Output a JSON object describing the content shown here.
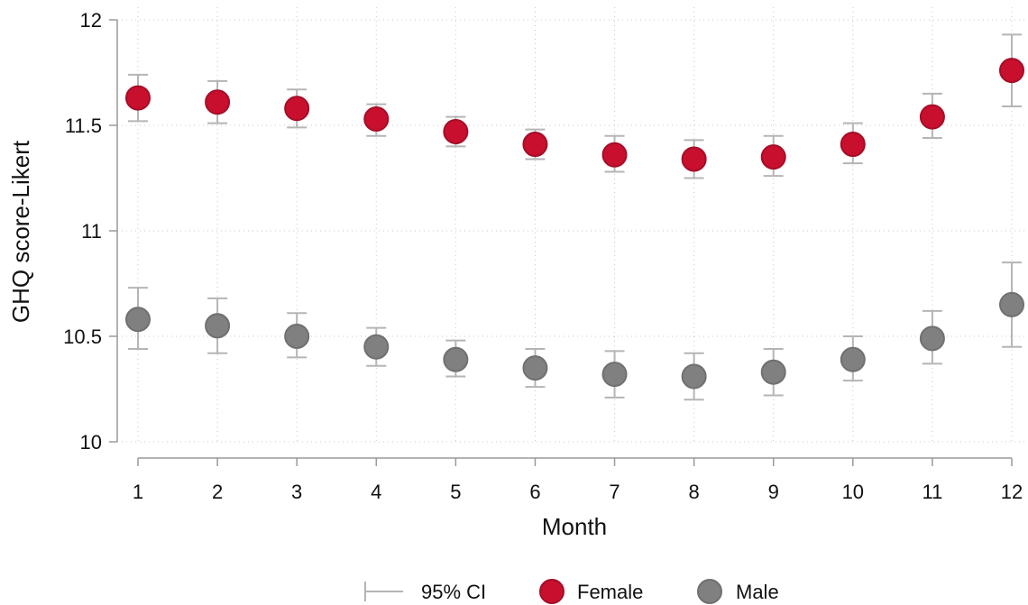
{
  "chart_data": {
    "type": "scatter",
    "title": "",
    "xlabel": "Month",
    "ylabel": "GHQ score-Likert",
    "x": [
      1,
      2,
      3,
      4,
      5,
      6,
      7,
      8,
      9,
      10,
      11,
      12
    ],
    "xticks": [
      "1",
      "2",
      "3",
      "4",
      "5",
      "6",
      "7",
      "8",
      "9",
      "10",
      "11",
      "12"
    ],
    "yticks": [
      10,
      10.5,
      11,
      11.5,
      12
    ],
    "ytick_labels": [
      "10",
      "10.5",
      "11",
      "11.5",
      "12"
    ],
    "xlim": [
      1,
      12
    ],
    "ylim": [
      10,
      12
    ],
    "grid": true,
    "legend": {
      "placement": "bottom",
      "ci_label": "95% CI"
    },
    "series": [
      {
        "name": "Female",
        "color": "#c8102e",
        "values": [
          11.63,
          11.61,
          11.58,
          11.53,
          11.47,
          11.41,
          11.36,
          11.34,
          11.35,
          11.41,
          11.54,
          11.76
        ],
        "ci_lower": [
          11.52,
          11.51,
          11.49,
          11.45,
          11.4,
          11.34,
          11.28,
          11.25,
          11.26,
          11.32,
          11.44,
          11.59
        ],
        "ci_upper": [
          11.74,
          11.71,
          11.67,
          11.6,
          11.54,
          11.48,
          11.45,
          11.43,
          11.45,
          11.51,
          11.65,
          11.93
        ]
      },
      {
        "name": "Male",
        "color": "#808080",
        "values": [
          10.58,
          10.55,
          10.5,
          10.45,
          10.39,
          10.35,
          10.32,
          10.31,
          10.33,
          10.39,
          10.49,
          10.65
        ],
        "ci_lower": [
          10.44,
          10.42,
          10.4,
          10.36,
          10.31,
          10.26,
          10.21,
          10.2,
          10.22,
          10.29,
          10.37,
          10.45
        ],
        "ci_upper": [
          10.73,
          10.68,
          10.61,
          10.54,
          10.48,
          10.44,
          10.43,
          10.42,
          10.44,
          10.5,
          10.62,
          10.85
        ]
      }
    ],
    "ci_color": "#b5b5b5",
    "grid_color": "#c8c8c8"
  }
}
